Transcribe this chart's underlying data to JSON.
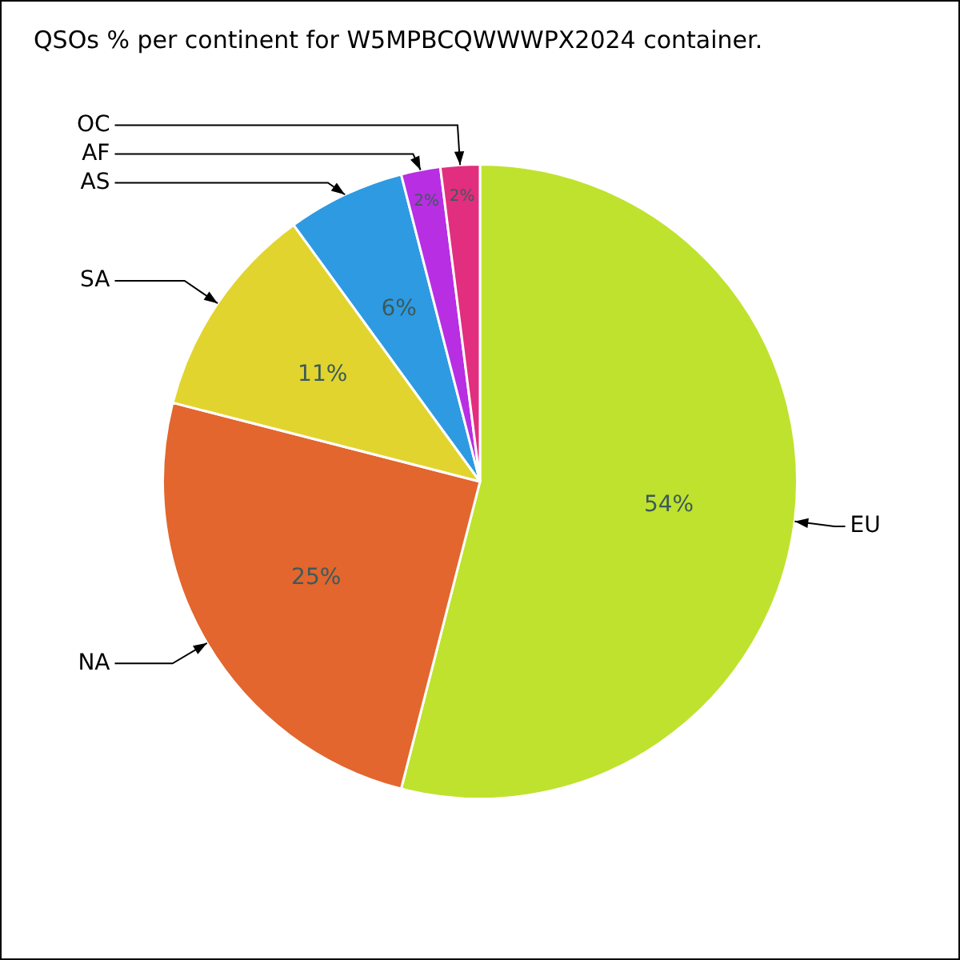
{
  "chart_data": {
    "type": "pie",
    "title": "QSOs % per continent for W5MPBCQWWWPX2024 container.",
    "categories": [
      "EU",
      "NA",
      "SA",
      "AS",
      "AF",
      "OC"
    ],
    "values": [
      54,
      25,
      11,
      6,
      2,
      2
    ],
    "value_labels": [
      "54%",
      "25%",
      "11%",
      "6%",
      "2%",
      "2%"
    ],
    "colors": [
      "#bfe22e",
      "#e2662e",
      "#e2d42e",
      "#2e9ae2",
      "#b82ee2",
      "#e22e7e"
    ],
    "legend": false
  }
}
